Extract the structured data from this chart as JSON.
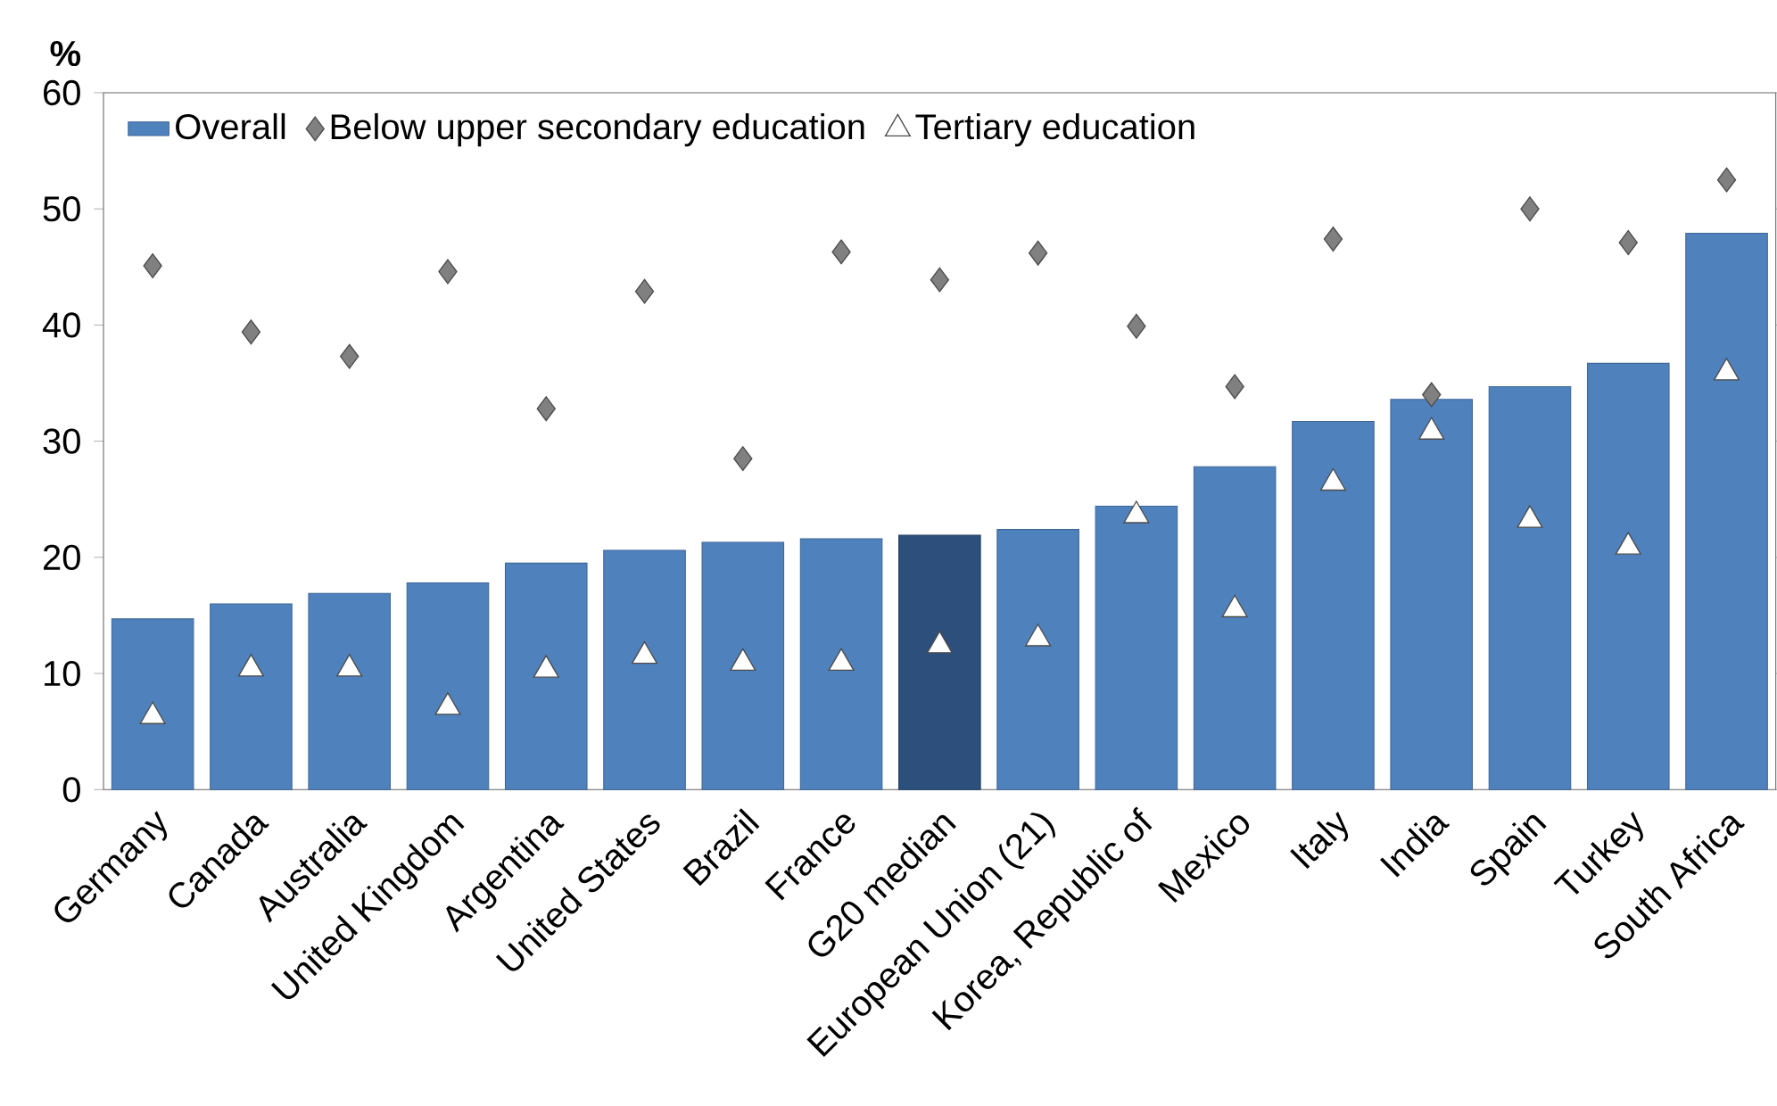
{
  "chart_data": {
    "type": "bar",
    "ylabel": "%",
    "categories": [
      "Germany",
      "Canada",
      "Australia",
      "United Kingdom",
      "Argentina",
      "United States",
      "Brazil",
      "France",
      "G20 median",
      "European Union (21)",
      "Korea, Republic of",
      "Mexico",
      "Italy",
      "India",
      "Spain",
      "Turkey",
      "South Africa"
    ],
    "series": [
      {
        "name": "Overall",
        "colors": [
          "#4f81bd",
          "#4f81bd",
          "#4f81bd",
          "#4f81bd",
          "#4f81bd",
          "#4f81bd",
          "#4f81bd",
          "#4f81bd",
          "#2c4f7c",
          "#4f81bd",
          "#4f81bd",
          "#4f81bd",
          "#4f81bd",
          "#4f81bd",
          "#4f81bd",
          "#4f81bd",
          "#4f81bd"
        ],
        "values": [
          14.7,
          16.0,
          16.9,
          17.8,
          19.5,
          20.6,
          21.3,
          21.6,
          21.9,
          22.4,
          24.4,
          27.8,
          31.7,
          33.6,
          34.7,
          36.7,
          47.9
        ]
      },
      {
        "name": "Below upper secondary education",
        "type": "scatter",
        "marker": "diamond",
        "color": "#808080",
        "values": [
          45.1,
          39.4,
          37.3,
          44.6,
          32.8,
          42.9,
          28.5,
          46.3,
          43.9,
          46.2,
          39.9,
          34.7,
          47.4,
          34.0,
          50.0,
          47.1,
          52.5
        ]
      },
      {
        "name": "Tertiary education",
        "type": "scatter",
        "marker": "triangle",
        "color": "#ffffff",
        "values": [
          6.3,
          10.4,
          10.4,
          7.1,
          10.3,
          11.5,
          10.9,
          10.9,
          12.4,
          13.0,
          23.6,
          15.5,
          26.4,
          30.8,
          23.2,
          20.9,
          35.9
        ]
      }
    ],
    "ylim": [
      0,
      60
    ],
    "yticks": [
      0,
      10,
      20,
      30,
      40,
      50,
      60
    ],
    "legend": "top left"
  }
}
